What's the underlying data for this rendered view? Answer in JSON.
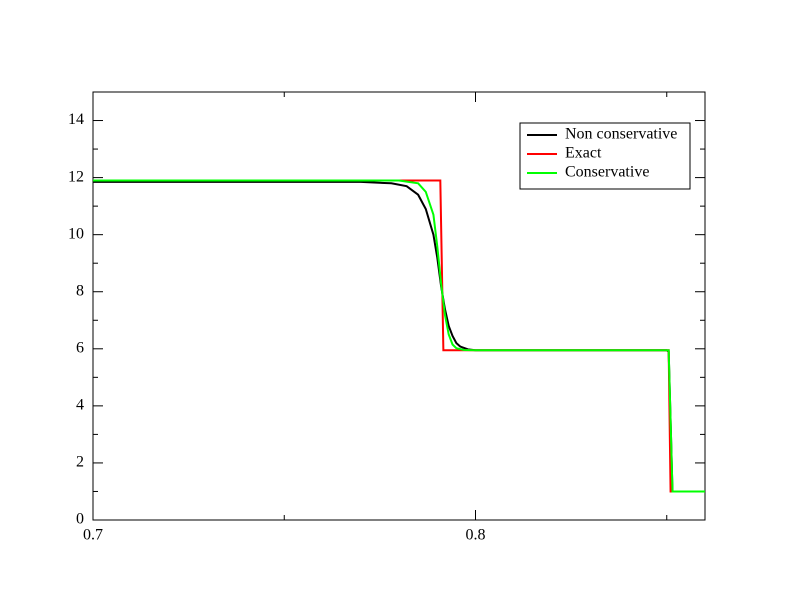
{
  "chart_data": {
    "type": "line",
    "xlim": [
      0.7,
      0.86
    ],
    "ylim": [
      0,
      15
    ],
    "xticks": [
      0.7,
      0.8
    ],
    "yticks": [
      0,
      2,
      4,
      6,
      8,
      10,
      12,
      14
    ],
    "xminorticks": [
      0.75,
      0.85
    ],
    "yminorticks": [
      1,
      3,
      5,
      7,
      9,
      11,
      13
    ],
    "legend": "upper right",
    "series": [
      {
        "name": "Non conservative",
        "color": "#000000",
        "x": [
          0.7,
          0.77,
          0.778,
          0.782,
          0.785,
          0.787,
          0.789,
          0.79,
          0.791,
          0.792,
          0.793,
          0.794,
          0.795,
          0.796,
          0.798,
          0.8,
          0.85,
          0.8505,
          0.851,
          0.8515,
          0.86
        ],
        "values": [
          11.85,
          11.85,
          11.8,
          11.7,
          11.4,
          10.9,
          10.0,
          9.2,
          8.2,
          7.4,
          6.8,
          6.45,
          6.2,
          6.08,
          5.98,
          5.95,
          5.95,
          5.9,
          3.5,
          1.0,
          1.0
        ]
      },
      {
        "name": "Exact",
        "color": "#ff0000",
        "x": [
          0.7,
          0.7908,
          0.7916,
          0.8505,
          0.851,
          0.86
        ],
        "values": [
          11.9,
          11.9,
          5.95,
          5.95,
          1.0,
          1.0
        ]
      },
      {
        "name": "Conservative",
        "color": "#00ff00",
        "x": [
          0.7,
          0.78,
          0.785,
          0.787,
          0.789,
          0.79,
          0.791,
          0.792,
          0.793,
          0.794,
          0.795,
          0.797,
          0.8,
          0.85,
          0.8505,
          0.851,
          0.8515,
          0.86
        ],
        "values": [
          11.9,
          11.9,
          11.8,
          11.5,
          10.7,
          9.6,
          8.3,
          7.2,
          6.5,
          6.15,
          6.02,
          5.96,
          5.95,
          5.95,
          5.95,
          3.5,
          1.0,
          1.0
        ]
      }
    ]
  }
}
